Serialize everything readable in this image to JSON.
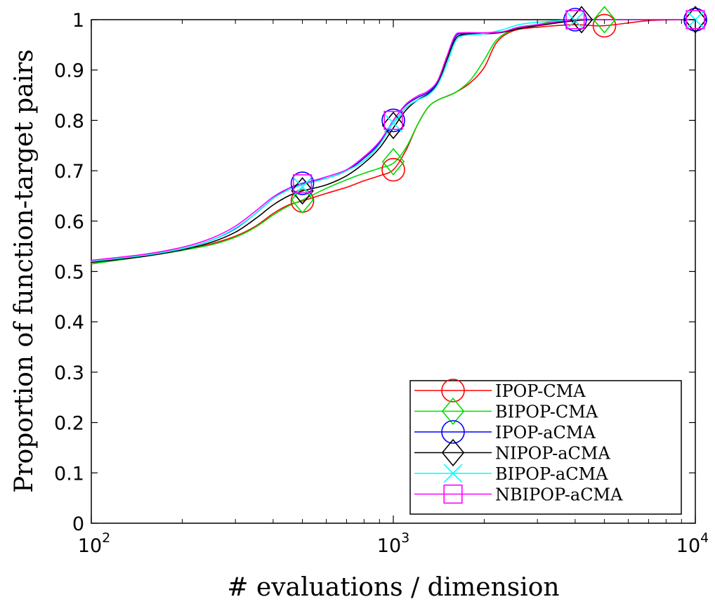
{
  "chart_data": {
    "type": "line",
    "title": "",
    "xlabel": "# evaluations / dimension",
    "ylabel": "Proportion of function-target pairs",
    "xscale": "log",
    "xlim": [
      100,
      10000
    ],
    "ylim": [
      0,
      1
    ],
    "xticks": [
      {
        "value": 100,
        "base": "10",
        "exp": "2"
      },
      {
        "value": 1000,
        "base": "10",
        "exp": "3"
      },
      {
        "value": 10000,
        "base": "10",
        "exp": "4"
      }
    ],
    "yticks": [
      {
        "value": 0,
        "label": "0"
      },
      {
        "value": 0.1,
        "label": "0.1"
      },
      {
        "value": 0.2,
        "label": "0.2"
      },
      {
        "value": 0.3,
        "label": "0.3"
      },
      {
        "value": 0.4,
        "label": "0.4"
      },
      {
        "value": 0.5,
        "label": "0.5"
      },
      {
        "value": 0.6,
        "label": "0.6"
      },
      {
        "value": 0.7,
        "label": "0.7"
      },
      {
        "value": 0.8,
        "label": "0.8"
      },
      {
        "value": 0.9,
        "label": "0.9"
      },
      {
        "value": 1,
        "label": "1"
      }
    ],
    "grid": false,
    "legend": "bottom-right",
    "series": [
      {
        "name": "IPOP-CMA",
        "color": "#ff0000",
        "marker": "circle",
        "x": [
          100,
          150,
          200,
          250,
          300,
          350,
          400,
          450,
          500,
          600,
          700,
          800,
          900,
          1000,
          1100,
          1200,
          1300,
          1400,
          1600,
          1800,
          2000,
          2200,
          2500,
          3000,
          4000,
          5000,
          7000,
          10000
        ],
        "y": [
          0.515,
          0.53,
          0.542,
          0.555,
          0.57,
          0.59,
          0.615,
          0.632,
          0.64,
          0.655,
          0.667,
          0.68,
          0.69,
          0.702,
          0.74,
          0.79,
          0.825,
          0.84,
          0.855,
          0.875,
          0.905,
          0.955,
          0.978,
          0.985,
          0.99,
          0.988,
          0.998,
          1.0
        ],
        "markers": [
          [
            500,
            0.64
          ],
          [
            1000,
            0.702
          ],
          [
            5000,
            0.988
          ],
          [
            10000,
            1.0
          ]
        ]
      },
      {
        "name": "BIPOP-CMA",
        "color": "#00dd00",
        "marker": "diamond",
        "x": [
          100,
          150,
          200,
          250,
          300,
          350,
          400,
          450,
          500,
          600,
          700,
          800,
          900,
          1000,
          1100,
          1200,
          1300,
          1400,
          1600,
          1800,
          2000,
          2200,
          2500,
          3000,
          3500,
          4000,
          5000,
          7000,
          10000
        ],
        "y": [
          0.515,
          0.53,
          0.542,
          0.553,
          0.568,
          0.588,
          0.612,
          0.63,
          0.642,
          0.665,
          0.682,
          0.695,
          0.705,
          0.715,
          0.745,
          0.79,
          0.825,
          0.84,
          0.855,
          0.88,
          0.92,
          0.96,
          0.98,
          0.99,
          0.998,
          1.0,
          1.0,
          1.0,
          1.0
        ],
        "markers": [
          [
            500,
            0.642
          ],
          [
            1000,
            0.718
          ],
          [
            5000,
            1.0
          ],
          [
            10000,
            1.0
          ]
        ]
      },
      {
        "name": "IPOP-aCMA",
        "color": "#0000ff",
        "marker": "circle",
        "x": [
          100,
          150,
          200,
          250,
          300,
          350,
          400,
          450,
          500,
          600,
          700,
          800,
          900,
          1000,
          1100,
          1200,
          1300,
          1400,
          1500,
          1600,
          1700,
          2000,
          2300,
          2600,
          3000,
          4000,
          5000,
          7000,
          10000
        ],
        "y": [
          0.52,
          0.532,
          0.545,
          0.562,
          0.585,
          0.615,
          0.645,
          0.665,
          0.675,
          0.685,
          0.7,
          0.725,
          0.755,
          0.8,
          0.83,
          0.845,
          0.855,
          0.875,
          0.92,
          0.965,
          0.972,
          0.972,
          0.975,
          0.985,
          0.99,
          1.0,
          1.0,
          1.0,
          1.0
        ],
        "markers": [
          [
            500,
            0.675
          ],
          [
            1000,
            0.8
          ],
          [
            4000,
            1.0
          ],
          [
            10000,
            1.0
          ]
        ]
      },
      {
        "name": "NIPOP-aCMA",
        "color": "#000000",
        "marker": "diamond",
        "x": [
          100,
          150,
          200,
          250,
          300,
          350,
          400,
          450,
          500,
          600,
          700,
          800,
          900,
          1000,
          1100,
          1200,
          1300,
          1400,
          1500,
          1600,
          1700,
          2000,
          2300,
          2600,
          3000,
          4000,
          5000,
          7000,
          10000
        ],
        "y": [
          0.518,
          0.53,
          0.543,
          0.558,
          0.578,
          0.605,
          0.632,
          0.65,
          0.66,
          0.672,
          0.69,
          0.715,
          0.745,
          0.785,
          0.82,
          0.84,
          0.852,
          0.872,
          0.918,
          0.96,
          0.97,
          0.972,
          0.975,
          0.982,
          0.988,
          0.998,
          1.0,
          1.0,
          1.0
        ],
        "markers": [
          [
            500,
            0.66
          ],
          [
            1000,
            0.79
          ],
          [
            4200,
            1.0
          ],
          [
            10000,
            1.0
          ]
        ]
      },
      {
        "name": "BIPOP-aCMA",
        "color": "#00ffff",
        "marker": "x",
        "x": [
          100,
          150,
          200,
          250,
          300,
          350,
          400,
          450,
          500,
          600,
          700,
          800,
          900,
          1000,
          1100,
          1200,
          1300,
          1400,
          1500,
          1600,
          1700,
          2000,
          2300,
          2600,
          3000,
          4000,
          5000,
          7000,
          10000
        ],
        "y": [
          0.52,
          0.532,
          0.545,
          0.562,
          0.586,
          0.615,
          0.645,
          0.662,
          0.672,
          0.685,
          0.7,
          0.72,
          0.752,
          0.795,
          0.825,
          0.84,
          0.85,
          0.87,
          0.91,
          0.955,
          0.968,
          0.972,
          0.98,
          0.99,
          0.995,
          1.0,
          1.0,
          1.0,
          1.0
        ],
        "markers": [
          [
            500,
            0.668
          ],
          [
            1000,
            0.795
          ],
          [
            4000,
            0.998
          ],
          [
            10000,
            1.0
          ]
        ]
      },
      {
        "name": "NBIPOP-aCMA",
        "color": "#ff00ff",
        "marker": "square",
        "x": [
          100,
          150,
          200,
          250,
          300,
          350,
          400,
          450,
          500,
          600,
          700,
          800,
          900,
          1000,
          1100,
          1200,
          1300,
          1400,
          1500,
          1600,
          1700,
          2000,
          2300,
          2600,
          3000,
          4000,
          5000,
          7000,
          10000
        ],
        "y": [
          0.522,
          0.534,
          0.548,
          0.566,
          0.59,
          0.62,
          0.648,
          0.665,
          0.674,
          0.688,
          0.702,
          0.728,
          0.758,
          0.8,
          0.832,
          0.848,
          0.858,
          0.878,
          0.925,
          0.968,
          0.974,
          0.974,
          0.976,
          0.985,
          0.99,
          1.0,
          1.0,
          1.0,
          1.0
        ],
        "markers": [
          [
            500,
            0.674
          ],
          [
            1000,
            0.8
          ],
          [
            4000,
            1.0
          ],
          [
            10000,
            1.0
          ]
        ]
      }
    ]
  }
}
